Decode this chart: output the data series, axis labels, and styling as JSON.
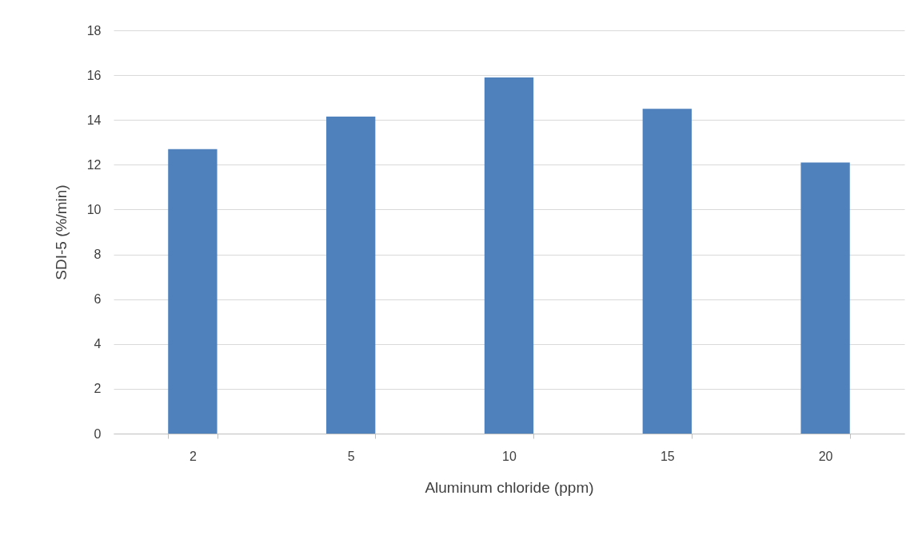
{
  "chart_data": {
    "type": "bar",
    "xlabel": "Aluminum chloride (ppm)",
    "ylabel": "SDI-5 (%/min)",
    "categories": [
      "2",
      "5",
      "10",
      "15",
      "20"
    ],
    "values": [
      12.7,
      14.15,
      15.9,
      14.5,
      12.1
    ],
    "color": "#4f81bd",
    "ylim": [
      0,
      18
    ],
    "yticks": [
      0,
      2,
      4,
      6,
      8,
      10,
      12,
      14,
      16,
      18
    ],
    "grid": "y"
  }
}
